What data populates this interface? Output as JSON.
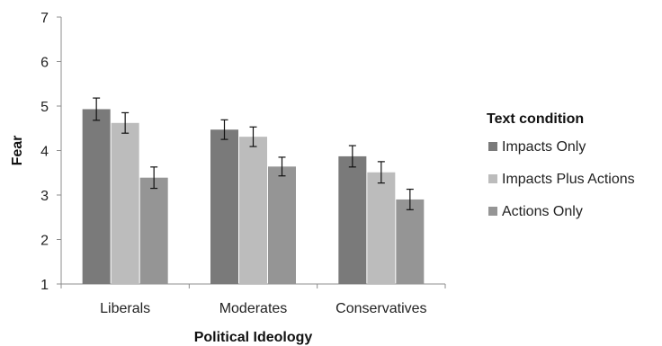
{
  "chart_data": {
    "type": "bar",
    "title": "",
    "xlabel": "Political Ideology",
    "ylabel": "Fear",
    "ylim": [
      1,
      7
    ],
    "yticks": [
      "1",
      "2",
      "3",
      "4",
      "5",
      "6",
      "7"
    ],
    "categories": [
      "Liberals",
      "Moderates",
      "Conservatives"
    ],
    "legend_title": "Text condition",
    "legend_position": "right",
    "grid": false,
    "series": [
      {
        "name": "Impacts Only",
        "color": "#7a7a7a",
        "values": [
          4.93,
          4.47,
          3.87
        ],
        "error": [
          0.25,
          0.22,
          0.24
        ]
      },
      {
        "name": "Impacts Plus Actions",
        "color": "#bcbcbc",
        "values": [
          4.62,
          4.31,
          3.51
        ],
        "error": [
          0.23,
          0.22,
          0.24
        ]
      },
      {
        "name": "Actions Only",
        "color": "#959595",
        "values": [
          3.39,
          3.64,
          2.9
        ],
        "error": [
          0.24,
          0.21,
          0.23
        ]
      }
    ]
  }
}
